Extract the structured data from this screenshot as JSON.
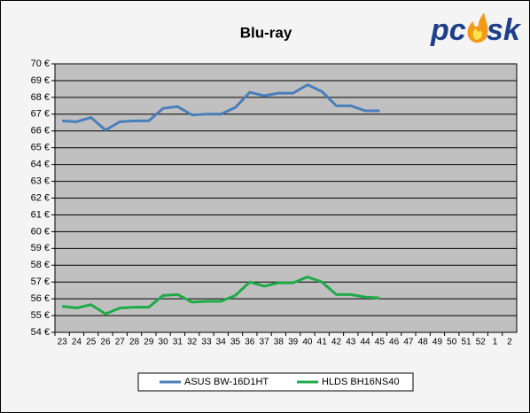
{
  "logo": {
    "left": "pc",
    "right": "sk"
  },
  "chart_data": {
    "type": "line",
    "title": "Blu-ray",
    "categories": [
      "23",
      "24",
      "25",
      "26",
      "27",
      "28",
      "29",
      "30",
      "31",
      "32",
      "33",
      "34",
      "35",
      "36",
      "37",
      "38",
      "39",
      "40",
      "41",
      "42",
      "43",
      "44",
      "45",
      "46",
      "47",
      "48",
      "49",
      "50",
      "51",
      "52",
      "1",
      "2"
    ],
    "series": [
      {
        "name": "ASUS BW-16D1HT",
        "color": "#4a7ebb",
        "values": [
          66.6,
          66.55,
          66.8,
          66.05,
          66.55,
          66.6,
          66.6,
          67.35,
          67.45,
          66.95,
          67.0,
          67.0,
          67.4,
          68.3,
          68.1,
          68.25,
          68.25,
          68.75,
          68.35,
          67.5,
          67.5,
          67.2,
          67.2,
          null,
          null,
          null,
          null,
          null,
          null,
          null,
          null,
          null
        ]
      },
      {
        "name": "HLDS BH16NS40",
        "color": "#1faa48",
        "values": [
          55.55,
          55.45,
          55.65,
          55.1,
          55.45,
          55.5,
          55.5,
          56.2,
          56.25,
          55.8,
          55.85,
          55.85,
          56.2,
          57.0,
          56.75,
          56.95,
          56.95,
          57.3,
          57.0,
          56.25,
          56.25,
          56.1,
          56.05,
          null,
          null,
          null,
          null,
          null,
          null,
          null,
          null,
          null
        ]
      }
    ],
    "ylim": [
      54,
      70
    ],
    "yticks": [
      {
        "value": 54,
        "label": "54 €"
      },
      {
        "value": 55,
        "label": "55 €"
      },
      {
        "value": 56,
        "label": "56 €"
      },
      {
        "value": 57,
        "label": "57 €"
      },
      {
        "value": 58,
        "label": "58 €"
      },
      {
        "value": 59,
        "label": "59 €"
      },
      {
        "value": 60,
        "label": "60 €"
      },
      {
        "value": 61,
        "label": "61 €"
      },
      {
        "value": 62,
        "label": "62 €"
      },
      {
        "value": 63,
        "label": "63 €"
      },
      {
        "value": 64,
        "label": "64 €"
      },
      {
        "value": 65,
        "label": "65 €"
      },
      {
        "value": 66,
        "label": "66 €"
      },
      {
        "value": 67,
        "label": "67 €"
      },
      {
        "value": 68,
        "label": "68 €"
      },
      {
        "value": 69,
        "label": "69 €"
      },
      {
        "value": 70,
        "label": "70 €"
      }
    ],
    "grid": true,
    "legend": "bottom",
    "plot_background": "#c0c0c0"
  }
}
